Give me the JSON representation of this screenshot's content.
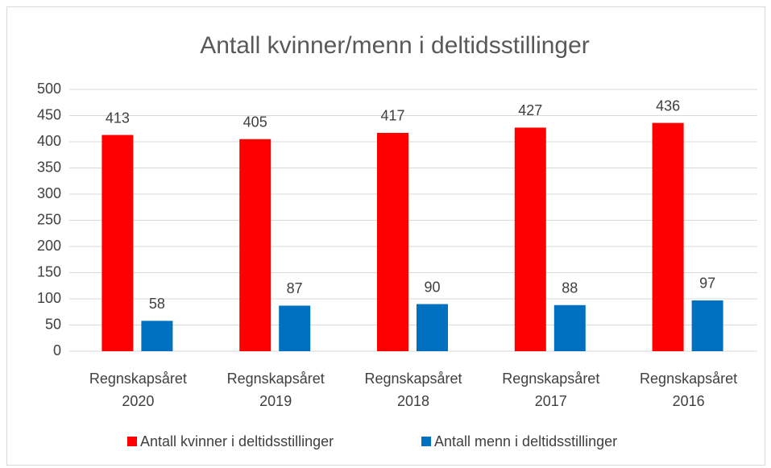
{
  "chart_data": {
    "type": "bar",
    "title": "Antall kvinner/menn i deltidsstillinger",
    "categories": [
      "Regnskapsåret 2020",
      "Regnskapsåret 2019",
      "Regnskapsåret 2018",
      "Regnskapsåret 2017",
      "Regnskapsåret 2016"
    ],
    "series": [
      {
        "name": "Antall kvinner i deltidsstillinger",
        "color": "#ff0000",
        "values": [
          413,
          405,
          417,
          427,
          436
        ]
      },
      {
        "name": "Antall menn i deltidsstillinger",
        "color": "#0070c0",
        "values": [
          58,
          87,
          90,
          88,
          97
        ]
      }
    ],
    "ylim": [
      0,
      500
    ],
    "yticks": [
      0,
      50,
      100,
      150,
      200,
      250,
      300,
      350,
      400,
      450,
      500
    ],
    "grid": true,
    "legend": "bottom"
  }
}
